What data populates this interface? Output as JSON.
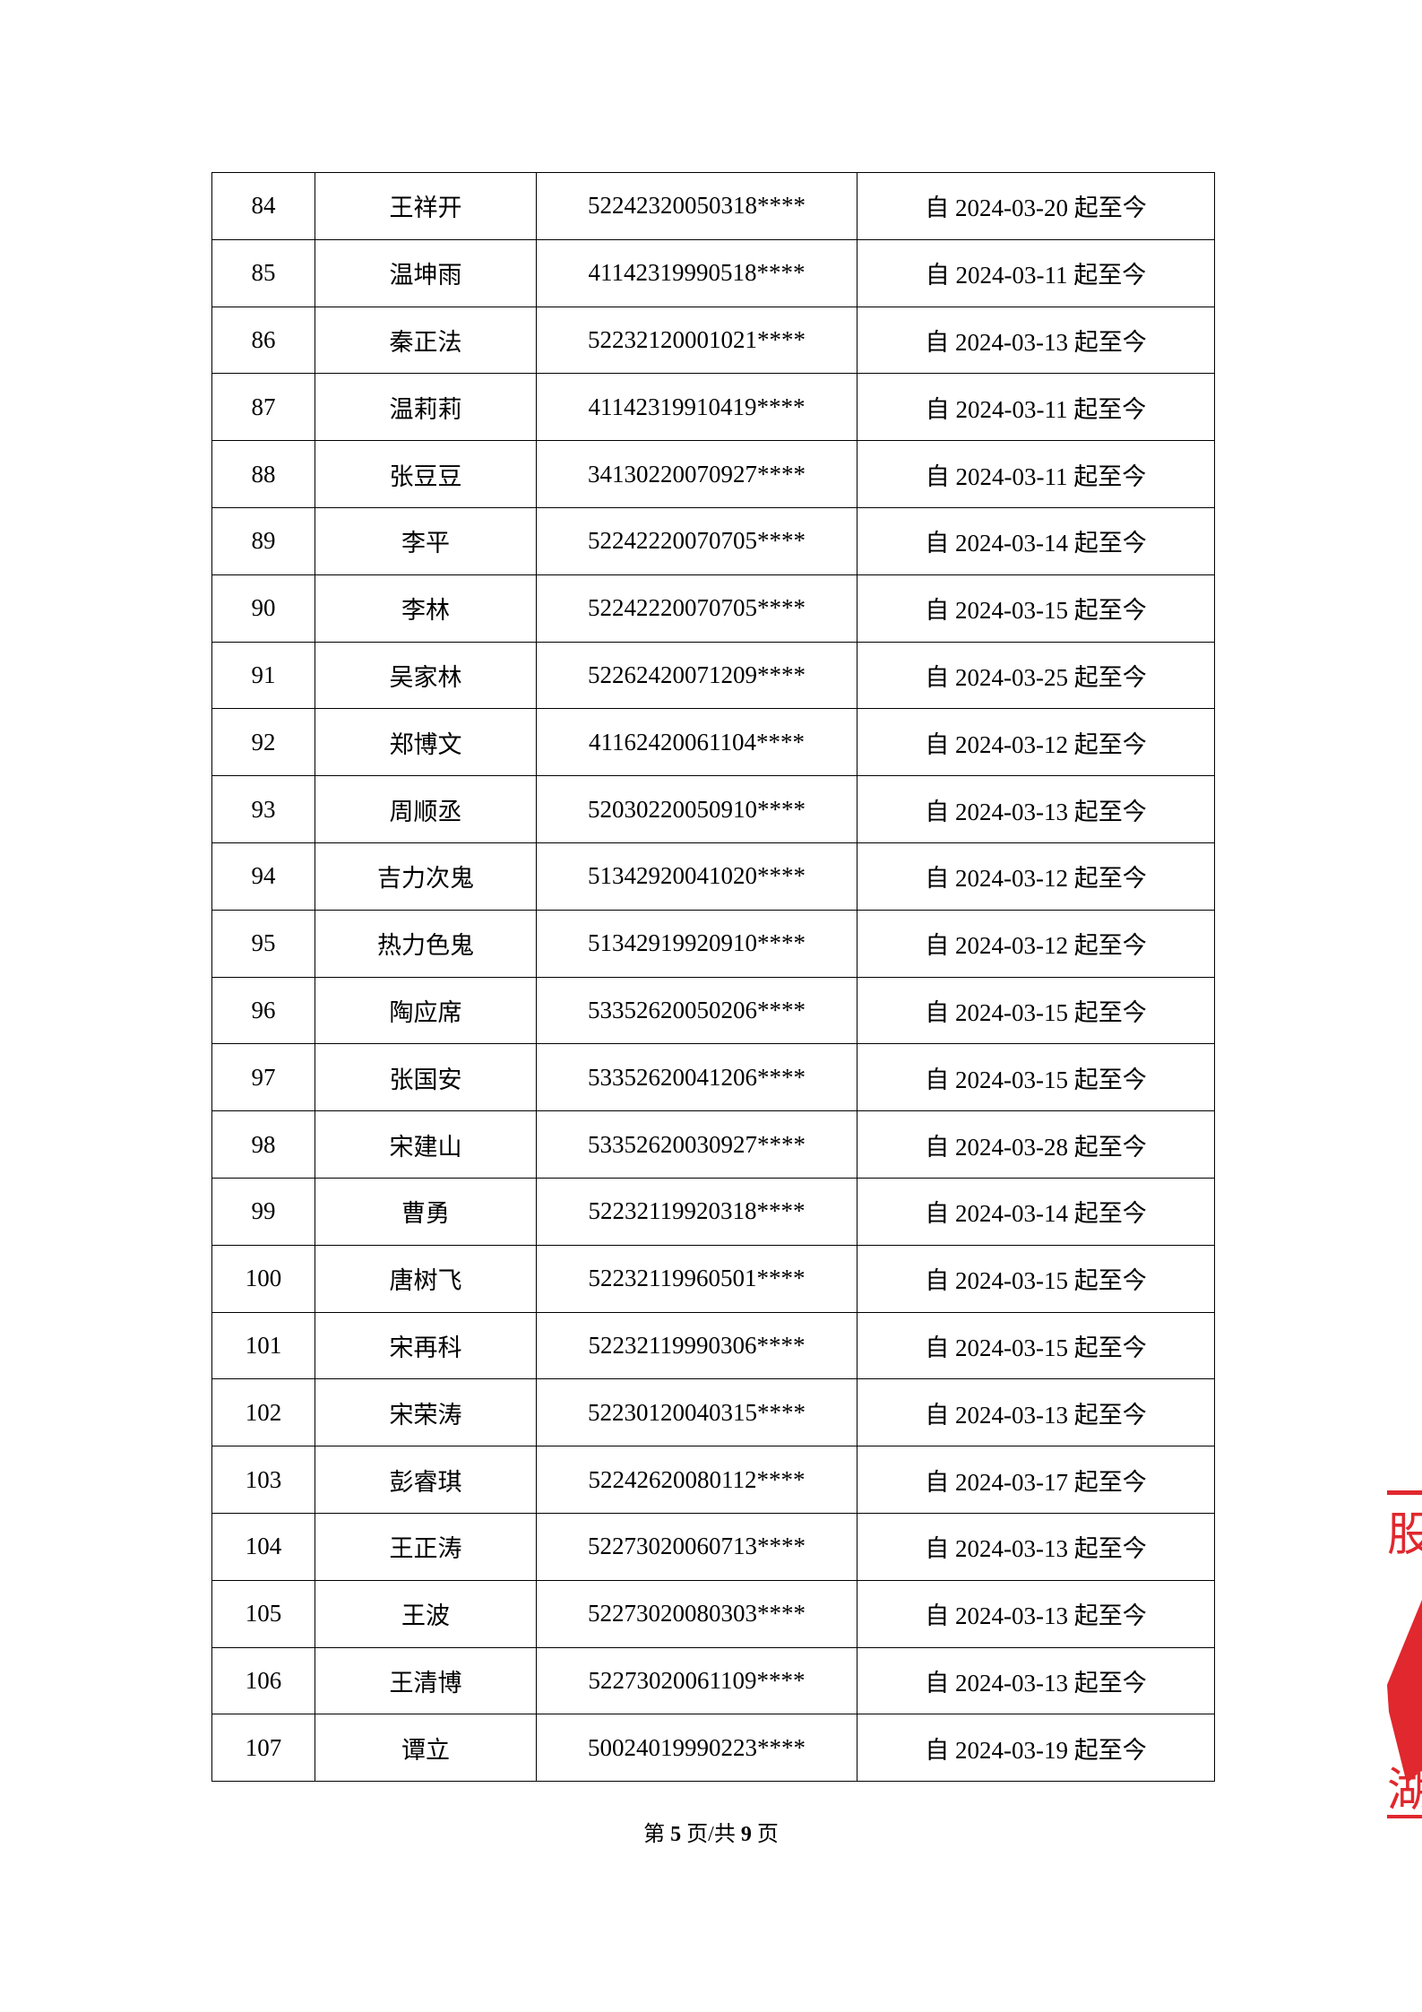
{
  "rows": [
    [
      "84",
      "王祥开",
      "52242320050318****",
      "自 2024-03-20 起至今"
    ],
    [
      "85",
      "温坤雨",
      "41142319990518****",
      "自 2024-03-11 起至今"
    ],
    [
      "86",
      "秦正法",
      "52232120001021****",
      "自 2024-03-13 起至今"
    ],
    [
      "87",
      "温莉莉",
      "41142319910419****",
      "自 2024-03-11 起至今"
    ],
    [
      "88",
      "张豆豆",
      "34130220070927****",
      "自 2024-03-11 起至今"
    ],
    [
      "89",
      "李平",
      "52242220070705****",
      "自 2024-03-14 起至今"
    ],
    [
      "90",
      "李林",
      "52242220070705****",
      "自 2024-03-15 起至今"
    ],
    [
      "91",
      "吴家林",
      "52262420071209****",
      "自 2024-03-25 起至今"
    ],
    [
      "92",
      "郑博文",
      "41162420061104****",
      "自 2024-03-12 起至今"
    ],
    [
      "93",
      "周顺丞",
      "52030220050910****",
      "自 2024-03-13 起至今"
    ],
    [
      "94",
      "吉力次鬼",
      "51342920041020****",
      "自 2024-03-12 起至今"
    ],
    [
      "95",
      "热力色鬼",
      "51342919920910****",
      "自 2024-03-12 起至今"
    ],
    [
      "96",
      "陶应席",
      "53352620050206****",
      "自 2024-03-15 起至今"
    ],
    [
      "97",
      "张国安",
      "53352620041206****",
      "自 2024-03-15 起至今"
    ],
    [
      "98",
      "宋建山",
      "53352620030927****",
      "自 2024-03-28 起至今"
    ],
    [
      "99",
      "曹勇",
      "52232119920318****",
      "自 2024-03-14 起至今"
    ],
    [
      "100",
      "唐树飞",
      "52232119960501****",
      "自 2024-03-15 起至今"
    ],
    [
      "101",
      "宋再科",
      "52232119990306****",
      "自 2024-03-15 起至今"
    ],
    [
      "102",
      "宋荣涛",
      "52230120040315****",
      "自 2024-03-13 起至今"
    ],
    [
      "103",
      "彭睿琪",
      "52242620080112****",
      "自 2024-03-17 起至今"
    ],
    [
      "104",
      "王正涛",
      "52273020060713****",
      "自 2024-03-13 起至今"
    ],
    [
      "105",
      "王波",
      "52273020080303****",
      "自 2024-03-13 起至今"
    ],
    [
      "106",
      "王清博",
      "52273020061109****",
      "自 2024-03-13 起至今"
    ],
    [
      "107",
      "谭立",
      "50024019990223****",
      "自 2024-03-19 起至今"
    ]
  ],
  "footer": {
    "prefix": "第",
    "page": "5",
    "middle": "页/共",
    "total": "9",
    "suffix": "页"
  },
  "stamp": {
    "color": "#e0282e",
    "text": "股份 湖"
  }
}
